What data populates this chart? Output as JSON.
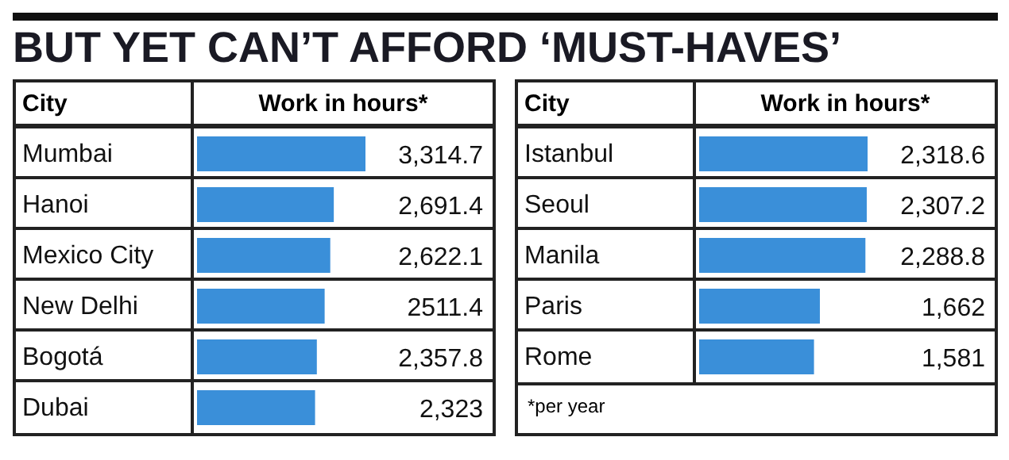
{
  "chart_data": [
    {
      "type": "bar",
      "orientation": "horizontal",
      "title": "BUT YET CAN’T AFFORD ‘MUST-HAVES’",
      "ylabel": "City",
      "xlabel": "Work in hours*",
      "categories": [
        "Mumbai",
        "Hanoi",
        "Mexico City",
        "New Delhi",
        "Bogotá",
        "Dubai"
      ],
      "values": [
        3314.7,
        2691.4,
        2622.1,
        2511.4,
        2357.8,
        2323
      ],
      "value_labels": [
        "3,314.7",
        "2,691.4",
        "2,622.1",
        "2511.4",
        "2,357.8",
        "2,323"
      ],
      "color": "#3a8fd9"
    },
    {
      "type": "bar",
      "orientation": "horizontal",
      "ylabel": "City",
      "xlabel": "Work in hours*",
      "categories": [
        "Istanbul",
        "Seoul",
        "Manila",
        "Paris",
        "Rome"
      ],
      "values": [
        2318.6,
        2307.2,
        2288.8,
        1662,
        1581
      ],
      "value_labels": [
        "2,318.6",
        "2,307.2",
        "2,288.8",
        "1,662",
        "1,581"
      ],
      "color": "#3a8fd9",
      "annotations": [
        "*per year"
      ]
    }
  ]
}
